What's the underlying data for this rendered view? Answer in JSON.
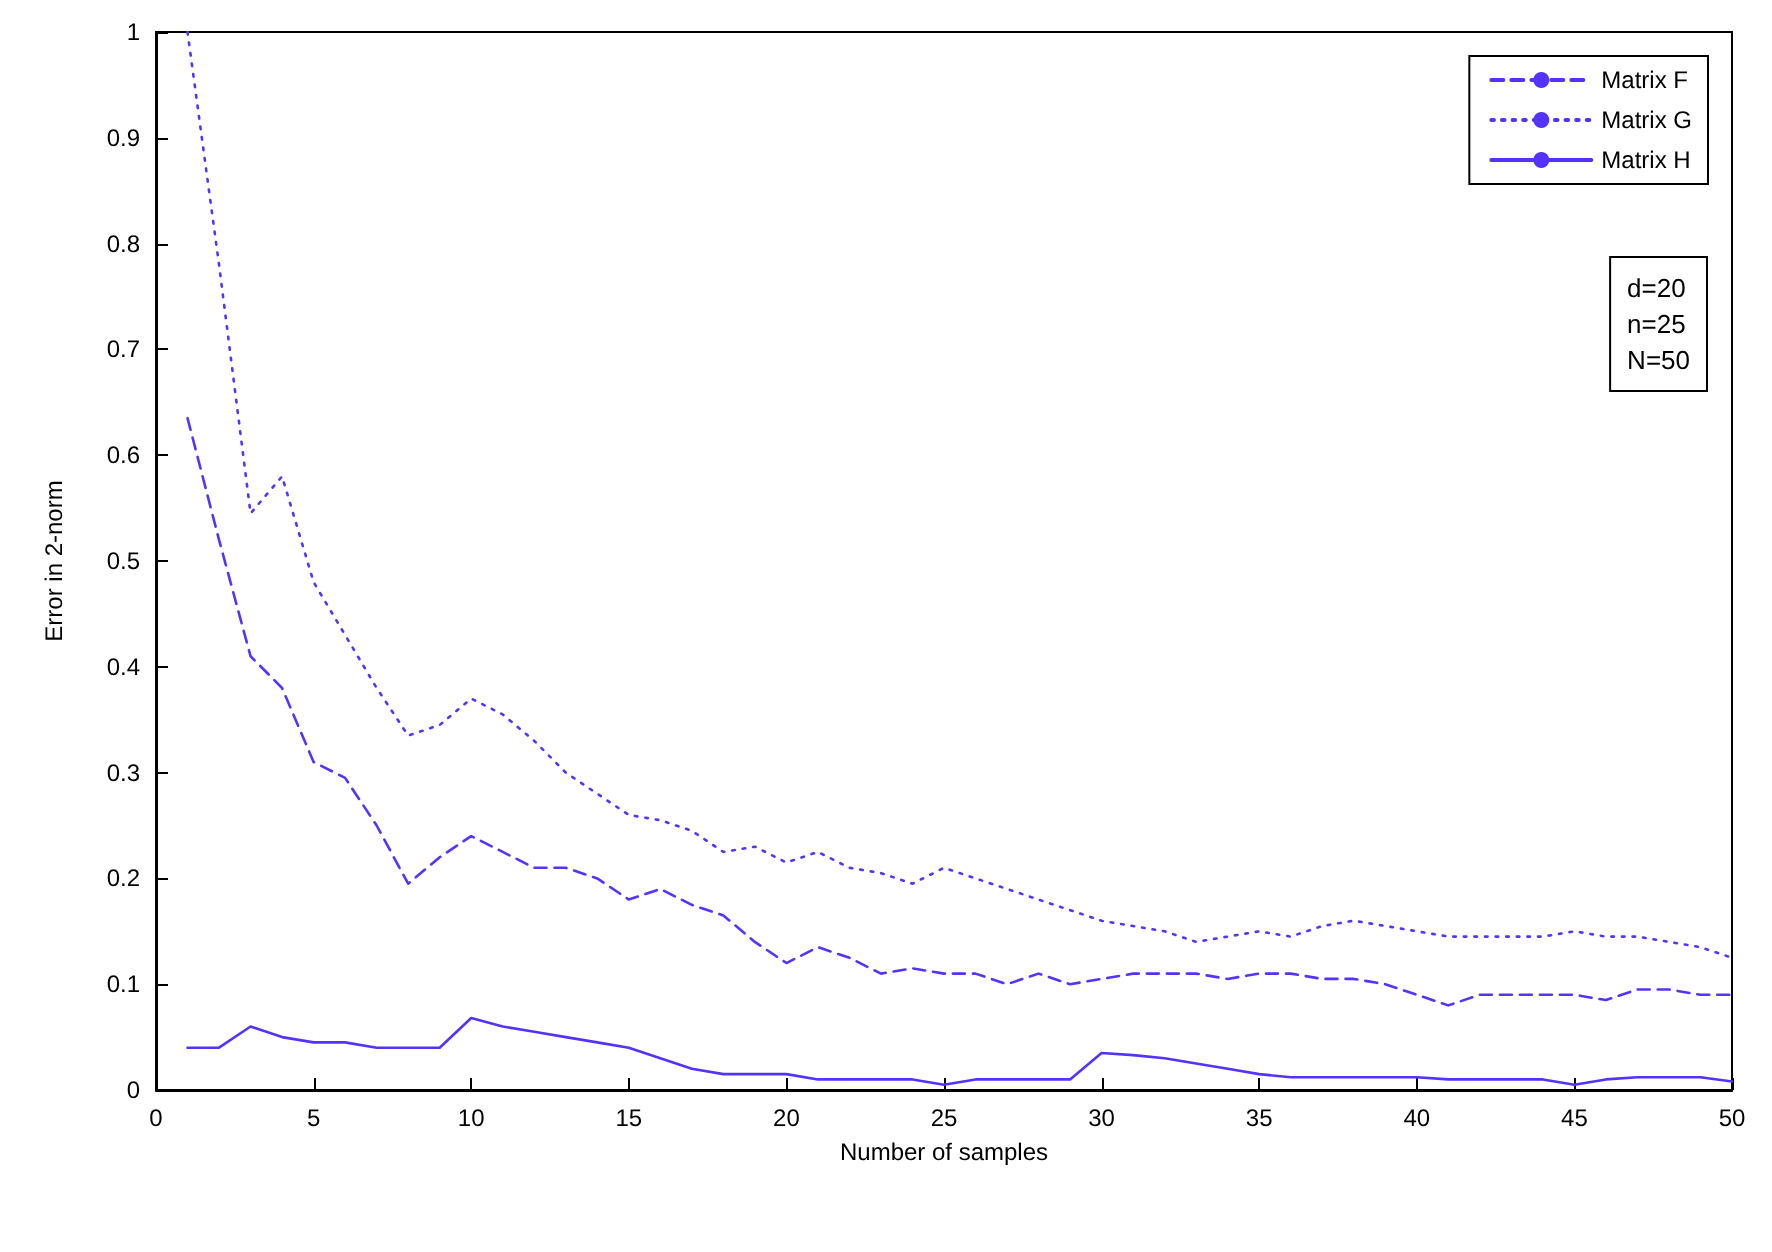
{
  "chart_data": {
    "type": "line",
    "xlabel": "Number of samples",
    "ylabel": "Error in 2-norm",
    "x": [
      1,
      2,
      3,
      4,
      5,
      6,
      7,
      8,
      9,
      10,
      11,
      12,
      13,
      14,
      15,
      16,
      17,
      18,
      19,
      20,
      21,
      22,
      23,
      24,
      25,
      26,
      27,
      28,
      29,
      30,
      31,
      32,
      33,
      34,
      35,
      36,
      37,
      38,
      39,
      40,
      41,
      42,
      43,
      44,
      45,
      46,
      47,
      48,
      49,
      50
    ],
    "series": [
      {
        "name": "Matrix F",
        "color": "#5533ff",
        "line_style": "dashed",
        "values": [
          0.635,
          0.52,
          0.41,
          0.38,
          0.31,
          0.295,
          0.25,
          0.195,
          0.22,
          0.24,
          0.225,
          0.21,
          0.21,
          0.2,
          0.18,
          0.19,
          0.175,
          0.165,
          0.14,
          0.12,
          0.135,
          0.125,
          0.11,
          0.115,
          0.11,
          0.11,
          0.1,
          0.11,
          0.1,
          0.105,
          0.11,
          0.11,
          0.11,
          0.105,
          0.11,
          0.11,
          0.105,
          0.105,
          0.1,
          0.09,
          0.08,
          0.09,
          0.09,
          0.09,
          0.09,
          0.085,
          0.095,
          0.095,
          0.09,
          0.09
        ]
      },
      {
        "name": "Matrix G",
        "color": "#5533ff",
        "line_style": "dotted",
        "values": [
          1.0,
          0.78,
          0.545,
          0.58,
          0.48,
          0.43,
          0.38,
          0.335,
          0.345,
          0.37,
          0.355,
          0.33,
          0.3,
          0.28,
          0.26,
          0.255,
          0.245,
          0.225,
          0.23,
          0.215,
          0.225,
          0.21,
          0.205,
          0.195,
          0.21,
          0.2,
          0.19,
          0.18,
          0.17,
          0.16,
          0.155,
          0.15,
          0.14,
          0.145,
          0.15,
          0.145,
          0.155,
          0.16,
          0.155,
          0.15,
          0.145,
          0.145,
          0.145,
          0.145,
          0.15,
          0.145,
          0.145,
          0.14,
          0.135,
          0.125
        ]
      },
      {
        "name": "Matrix H",
        "color": "#5533ff",
        "line_style": "solid",
        "values": [
          0.04,
          0.04,
          0.06,
          0.05,
          0.045,
          0.045,
          0.04,
          0.04,
          0.04,
          0.068,
          0.06,
          0.055,
          0.05,
          0.045,
          0.04,
          0.03,
          0.02,
          0.015,
          0.015,
          0.015,
          0.01,
          0.01,
          0.01,
          0.01,
          0.005,
          0.01,
          0.01,
          0.01,
          0.01,
          0.035,
          0.033,
          0.03,
          0.025,
          0.02,
          0.015,
          0.012,
          0.012,
          0.012,
          0.012,
          0.012,
          0.01,
          0.01,
          0.01,
          0.01,
          0.005,
          0.01,
          0.012,
          0.012,
          0.012,
          0.008
        ]
      }
    ],
    "xlim": [
      0,
      50
    ],
    "xticks": [
      0,
      5,
      10,
      15,
      20,
      25,
      30,
      35,
      40,
      45,
      50
    ],
    "ylim": [
      0,
      1
    ],
    "yticks": [
      0,
      0.1,
      0.2,
      0.3,
      0.4,
      0.5,
      0.6,
      0.7,
      0.8,
      0.9,
      1
    ],
    "grid": false,
    "legend": "top right",
    "marker": "none",
    "annotations": [
      "d=20\nn=25\nN=50"
    ]
  }
}
